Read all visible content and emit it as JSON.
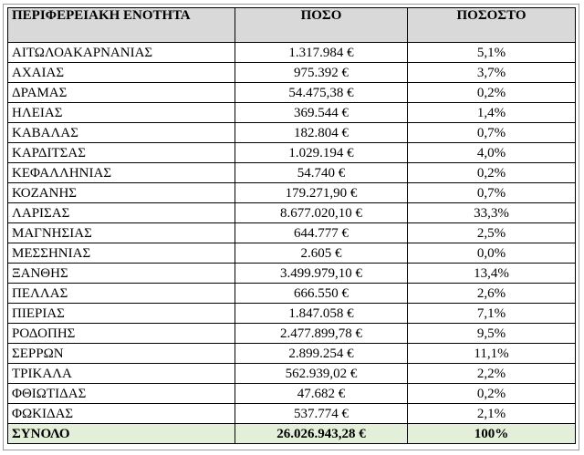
{
  "table": {
    "headers": [
      "ΠΕΡΙΦΕΡΕΙΑΚΗ ΕΝΟΤΗΤΑ",
      "ΠΟΣΟ",
      "ΠΟΣΟΣΤΟ"
    ],
    "rows": [
      [
        "ΑΙΤΩΛΟΑΚΑΡΝΑΝΙΑΣ",
        "1.317.984 €",
        "5,1%"
      ],
      [
        "ΑΧΑΙΑΣ",
        "975.392 €",
        "3,7%"
      ],
      [
        "ΔΡΑΜΑΣ",
        "54.475,38 €",
        "0,2%"
      ],
      [
        "ΗΛΕΙΑΣ",
        "369.544 €",
        "1,4%"
      ],
      [
        "ΚΑΒΑΛΑΣ",
        "182.804 €",
        "0,7%"
      ],
      [
        "ΚΑΡΔΙΤΣΑΣ",
        "1.029.194 €",
        "4,0%"
      ],
      [
        "ΚΕΦΑΛΛΗΝΙΑΣ",
        "54.740 €",
        "0,2%"
      ],
      [
        "ΚΟΖΑΝΗΣ",
        "179.271,90 €",
        "0,7%"
      ],
      [
        "ΛΑΡΙΣΑΣ",
        "8.677.020,10 €",
        "33,3%"
      ],
      [
        "ΜΑΓΝΗΣΙΑΣ",
        "644.777 €",
        "2,5%"
      ],
      [
        "ΜΕΣΣΗΝΙΑΣ",
        "2.605 €",
        "0,0%"
      ],
      [
        "ΞΑΝΘΗΣ",
        "3.499.979,10 €",
        "13,4%"
      ],
      [
        "ΠΕΛΛΑΣ",
        "666.550 €",
        "2,6%"
      ],
      [
        "ΠΙΕΡΙΑΣ",
        "1.847.058 €",
        "7,1%"
      ],
      [
        "ΡΟΔΟΠΗΣ",
        "2.477.899,78 €",
        "9,5%"
      ],
      [
        "ΣΕΡΡΩΝ",
        "2.899.254 €",
        "11,1%"
      ],
      [
        "ΤΡΙΚΑΛΑ",
        "562.939,02 €",
        "2,2%"
      ],
      [
        "ΦΘΙΩΤΙΔΑΣ",
        "47.682 €",
        "0,2%"
      ],
      [
        "ΦΩΚΙΔΑΣ",
        "537.774 €",
        "2,1%"
      ]
    ],
    "total": [
      "ΣΥΝΟΛΟ",
      "26.026.943,28 €",
      "100%"
    ]
  },
  "colors": {
    "header_bg": "#d9d9d9",
    "total_bg": "#e4efda",
    "border": "#000000"
  }
}
